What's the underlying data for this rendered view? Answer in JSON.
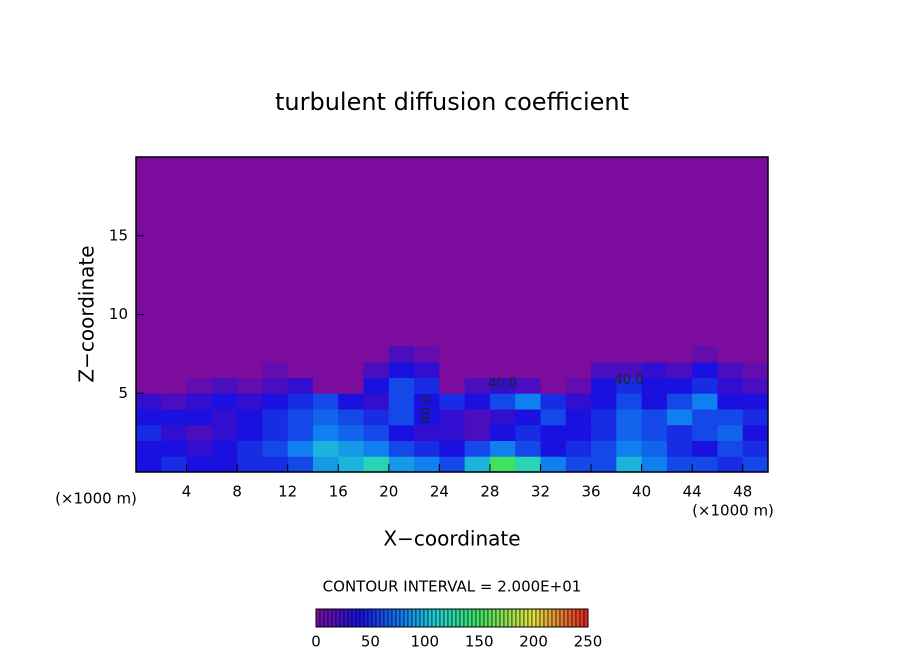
{
  "chart_data": {
    "type": "heatmap",
    "title": "turbulent diffusion coefficient",
    "x_label": "X−coordinate",
    "y_label": "Z−coordinate",
    "x_unit": "(×1000 m)",
    "y_unit": "(×1000 m)",
    "contour_note": "CONTOUR INTERVAL = 2.000E+01",
    "annotations": [
      "40.0",
      "40.0",
      "40.0"
    ],
    "xlim": [
      0,
      50
    ],
    "ylim": [
      0,
      20
    ],
    "xticks": [
      4,
      8,
      12,
      16,
      20,
      24,
      28,
      32,
      36,
      40,
      44,
      48
    ],
    "yticks": [
      5,
      10,
      15
    ],
    "x": [
      1,
      3,
      5,
      7,
      9,
      11,
      13,
      15,
      17,
      19,
      21,
      23,
      25,
      27,
      29,
      31,
      33,
      35,
      37,
      39,
      41,
      43,
      45,
      47,
      49
    ],
    "y": [
      0.5,
      1.5,
      2.5,
      3.5,
      4.5,
      5.5,
      6.5,
      7.5
    ],
    "z": [
      [
        40,
        50,
        40,
        40,
        50,
        50,
        60,
        90,
        100,
        120,
        90,
        80,
        60,
        100,
        150,
        120,
        80,
        60,
        60,
        100,
        80,
        60,
        60,
        50,
        60
      ],
      [
        40,
        40,
        30,
        40,
        50,
        60,
        80,
        100,
        90,
        80,
        60,
        50,
        40,
        60,
        80,
        60,
        40,
        50,
        60,
        80,
        70,
        50,
        40,
        60,
        50
      ],
      [
        50,
        30,
        20,
        30,
        40,
        50,
        60,
        80,
        70,
        60,
        40,
        30,
        30,
        20,
        40,
        50,
        40,
        40,
        50,
        70,
        60,
        50,
        60,
        70,
        40
      ],
      [
        40,
        40,
        40,
        30,
        40,
        50,
        60,
        70,
        60,
        50,
        60,
        40,
        30,
        20,
        30,
        40,
        60,
        40,
        50,
        70,
        60,
        80,
        60,
        60,
        50
      ],
      [
        30,
        20,
        30,
        40,
        30,
        40,
        50,
        60,
        40,
        30,
        60,
        40,
        50,
        40,
        60,
        80,
        50,
        30,
        40,
        60,
        40,
        60,
        80,
        40,
        40
      ],
      [
        0,
        0,
        10,
        20,
        10,
        20,
        30,
        0,
        0,
        40,
        60,
        50,
        0,
        20,
        30,
        20,
        0,
        10,
        40,
        50,
        40,
        40,
        50,
        30,
        20
      ],
      [
        0,
        0,
        0,
        0,
        0,
        10,
        0,
        0,
        0,
        20,
        40,
        30,
        0,
        0,
        0,
        0,
        0,
        0,
        20,
        20,
        30,
        20,
        40,
        20,
        10
      ],
      [
        0,
        0,
        0,
        0,
        0,
        0,
        0,
        0,
        0,
        0,
        20,
        10,
        0,
        0,
        0,
        0,
        0,
        0,
        0,
        0,
        0,
        0,
        10,
        0,
        0
      ]
    ],
    "colormap": [
      [
        0,
        "#7b0c9e"
      ],
      [
        40,
        "#1a10e0"
      ],
      [
        80,
        "#1080f0"
      ],
      [
        110,
        "#20d0d0"
      ],
      [
        150,
        "#40e060"
      ],
      [
        200,
        "#e0e040"
      ],
      [
        250,
        "#e02020"
      ]
    ],
    "clim": [
      0,
      250
    ],
    "cticks": [
      0,
      50,
      100,
      150,
      200,
      250
    ]
  }
}
